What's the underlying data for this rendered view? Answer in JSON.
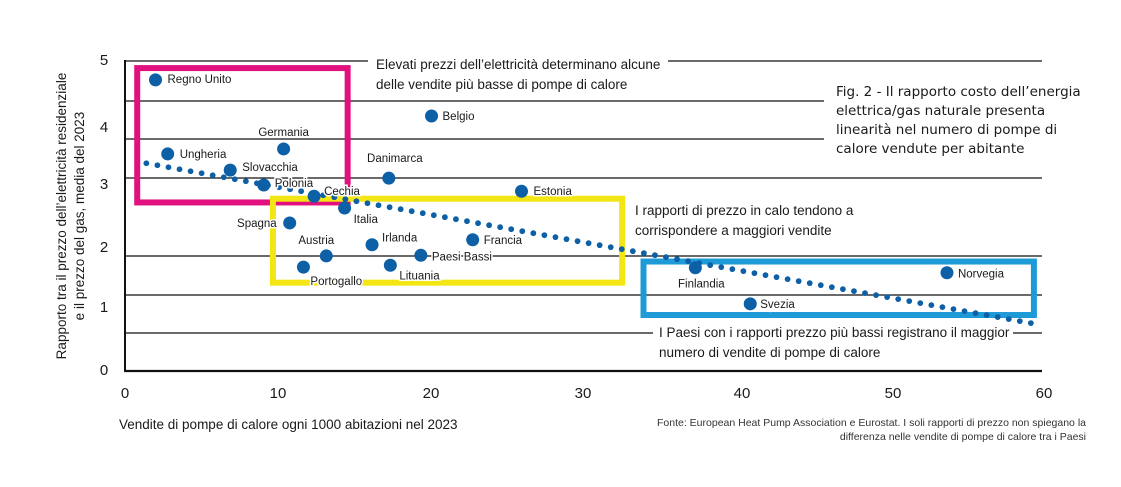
{
  "chart_data": {
    "type": "scatter",
    "title": "Fig. 2 - Il rapporto costo dell’energia elettrica/gas naturale presenta linearità nel numero di pompe di calore vendute per abitante",
    "title_lines": [
      "Fig. 2 - Il rapporto costo dell’energia",
      "elettrica/gas naturale presenta",
      "linearità nel numero di pompe di",
      "calore vendute per abitante"
    ],
    "xlabel": "Vendite di pompe di calore ogni 1000 abitazioni nel 2023",
    "ylabel_lines": [
      "Rapporto tra il prezzo dell’elettricità residenziale",
      "e il prezzo del gas, media del 2023"
    ],
    "xlim": [
      0,
      60
    ],
    "ylim": [
      0,
      5
    ],
    "x_ticks": [
      "0",
      "10",
      "20",
      "30",
      "40",
      "50",
      "60"
    ],
    "y_ticks": [
      "0",
      "1",
      "2",
      "3",
      "4",
      "5"
    ],
    "grid": "horizontal",
    "point_color": "#0d5fa6",
    "points": [
      {
        "name": "Regno Unito",
        "x": 2.0,
        "y": 4.68
      },
      {
        "name": "Ungheria",
        "x": 2.8,
        "y": 3.49
      },
      {
        "name": "Germania",
        "x": 10.4,
        "y": 3.57
      },
      {
        "name": "Slovacchia",
        "x": 6.9,
        "y": 3.23
      },
      {
        "name": "Polonia",
        "x": 9.1,
        "y": 2.99
      },
      {
        "name": "Cechia",
        "x": 12.4,
        "y": 2.81
      },
      {
        "name": "Italia",
        "x": 14.4,
        "y": 2.62
      },
      {
        "name": "Danimarca",
        "x": 17.3,
        "y": 3.1
      },
      {
        "name": "Belgio",
        "x": 20.1,
        "y": 4.1
      },
      {
        "name": "Estonia",
        "x": 26.0,
        "y": 2.89
      },
      {
        "name": "Spagna",
        "x": 10.8,
        "y": 2.38
      },
      {
        "name": "Austria",
        "x": 13.2,
        "y": 1.85
      },
      {
        "name": "Portogallo",
        "x": 11.7,
        "y": 1.67
      },
      {
        "name": "Irlanda",
        "x": 16.2,
        "y": 2.03
      },
      {
        "name": "Lituania",
        "x": 17.4,
        "y": 1.7
      },
      {
        "name": "Paesi Bassi",
        "x": 19.4,
        "y": 1.86
      },
      {
        "name": "Francia",
        "x": 22.8,
        "y": 2.11
      },
      {
        "name": "Finlandia",
        "x": 37.4,
        "y": 1.66
      },
      {
        "name": "Svezia",
        "x": 41.0,
        "y": 1.08
      },
      {
        "name": "Norvegia",
        "x": 53.9,
        "y": 1.58
      }
    ],
    "trendline": {
      "x": [
        1.4,
        59.4
      ],
      "y": [
        3.34,
        0.77
      ],
      "style": "dotted",
      "color": "#0d5fa6"
    },
    "highlight_boxes": [
      {
        "name": "high-price",
        "color": "#e0117f",
        "x": [
          0.8,
          14.6
        ],
        "y": [
          2.71,
          4.87
        ]
      },
      {
        "name": "declining",
        "color": "#f4e514",
        "x": [
          9.7,
          32.6
        ],
        "y": [
          1.42,
          2.77
        ]
      },
      {
        "name": "lowest",
        "color": "#1e9bd7",
        "x": [
          34.0,
          59.6
        ],
        "y": [
          0.9,
          1.76
        ]
      }
    ],
    "annotations": [
      {
        "name": "high-price",
        "lines": [
          "Elevati prezzi dell’elettricità determinano alcune",
          "delle vendite più basse di pompe di calore"
        ]
      },
      {
        "name": "declining",
        "lines": [
          "I rapporti di prezzo in calo tendono a",
          "corrispondere a maggiori vendite"
        ]
      },
      {
        "name": "lowest",
        "lines": [
          "I Paesi con i rapporti prezzo più bassi registrano il maggior",
          "numero di vendite di pompe di calore"
        ]
      }
    ],
    "source_lines": [
      "Fonte: European Heat Pump Association e Eurostat. I soli rapporti di prezzo non spiegano la",
      "differenza nelle vendite di pompe di calore tra i Paesi"
    ]
  }
}
